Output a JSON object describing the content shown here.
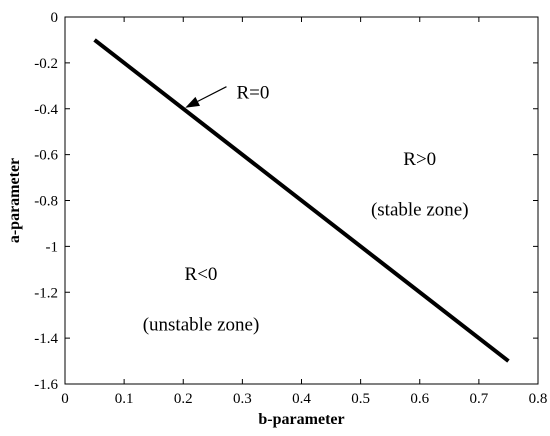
{
  "chart_data": {
    "type": "line",
    "xlabel": "b-parameter",
    "ylabel": "a-parameter",
    "xlim": [
      0,
      0.8
    ],
    "ylim": [
      -1.6,
      0
    ],
    "xticks": [
      0,
      0.1,
      0.2,
      0.3,
      0.4,
      0.5,
      0.6,
      0.7,
      0.8
    ],
    "yticks": [
      0,
      -0.2,
      -0.4,
      -0.6,
      -0.8,
      -1,
      -1.2,
      -1.4,
      -1.6
    ],
    "xtick_labels": [
      "0",
      "0.1",
      "0.2",
      "0.3",
      "0.4",
      "0.5",
      "0.6",
      "0.7",
      "0.8"
    ],
    "ytick_labels": [
      "0",
      "-0.2",
      "-0.4",
      "-0.6",
      "-0.8",
      "-1",
      "-1.2",
      "-1.4",
      "-1.6"
    ],
    "grid": false,
    "series": [
      {
        "x": [
          0.05,
          0.75
        ],
        "y": [
          -0.1,
          -1.5
        ],
        "color": "#000000"
      }
    ],
    "annotations": [
      {
        "text": "R=0",
        "at": [
          0.29,
          -0.33
        ],
        "arrow_to": [
          0.2,
          -0.4
        ]
      },
      {
        "text": "R>0",
        "at": [
          0.6,
          -0.62
        ]
      },
      {
        "text": "(stable zone)",
        "at": [
          0.6,
          -0.84
        ]
      },
      {
        "text": "R<0",
        "at": [
          0.23,
          -1.12
        ]
      },
      {
        "text": "(unstable zone)",
        "at": [
          0.23,
          -1.34
        ]
      }
    ]
  }
}
